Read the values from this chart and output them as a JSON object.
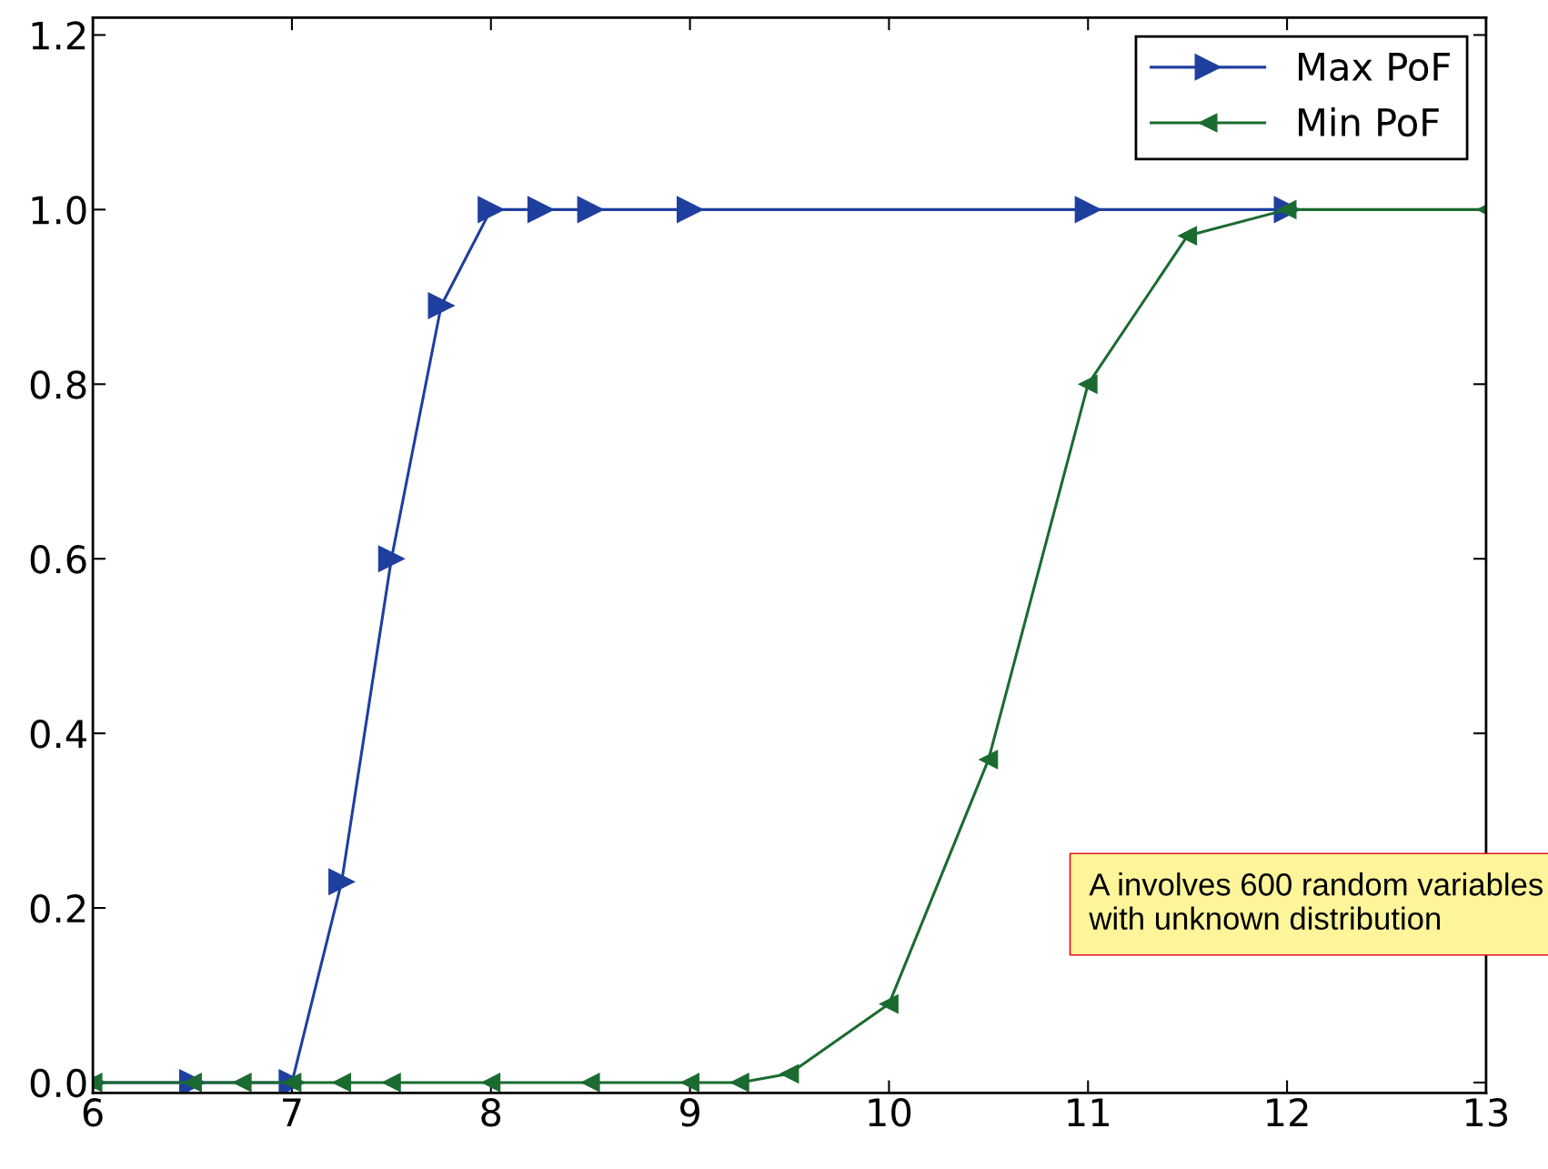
{
  "chart_data": {
    "type": "line",
    "xlim": [
      6,
      13
    ],
    "ylim": [
      -0.012,
      1.22
    ],
    "xticks": [
      6,
      7,
      8,
      9,
      10,
      11,
      12,
      13
    ],
    "yticks": [
      {
        "value": 0,
        "label": "0.0"
      },
      0.2,
      0.4,
      0.6,
      0.8,
      {
        "value": 1,
        "label": "1.0"
      },
      1.2
    ],
    "grid": false,
    "legend": "top right",
    "series": [
      {
        "name": "Max PoF",
        "color": "#1f3f9f",
        "marker": "triangle-right",
        "x": [
          6,
          6.5,
          7,
          7.25,
          7.5,
          7.75,
          8,
          8.25,
          8.5,
          9,
          11,
          12
        ],
        "values": [
          0,
          0,
          0,
          0.23,
          0.6,
          0.89,
          1,
          1,
          1,
          1,
          1,
          1
        ]
      },
      {
        "name": "Min PoF",
        "color": "#1b6b30",
        "marker": "triangle-left",
        "x": [
          6,
          6.5,
          6.75,
          7,
          7.25,
          7.5,
          8,
          8.5,
          9,
          9.25,
          9.5,
          10,
          10.5,
          11,
          11.5,
          12,
          13
        ],
        "values": [
          0,
          0,
          0,
          0,
          0,
          0,
          0,
          0,
          0,
          0,
          0.01,
          0.09,
          0.37,
          0.8,
          0.97,
          1,
          1
        ]
      }
    ],
    "annotations": [
      "A involves 600 random variables with unknown distribution"
    ]
  }
}
